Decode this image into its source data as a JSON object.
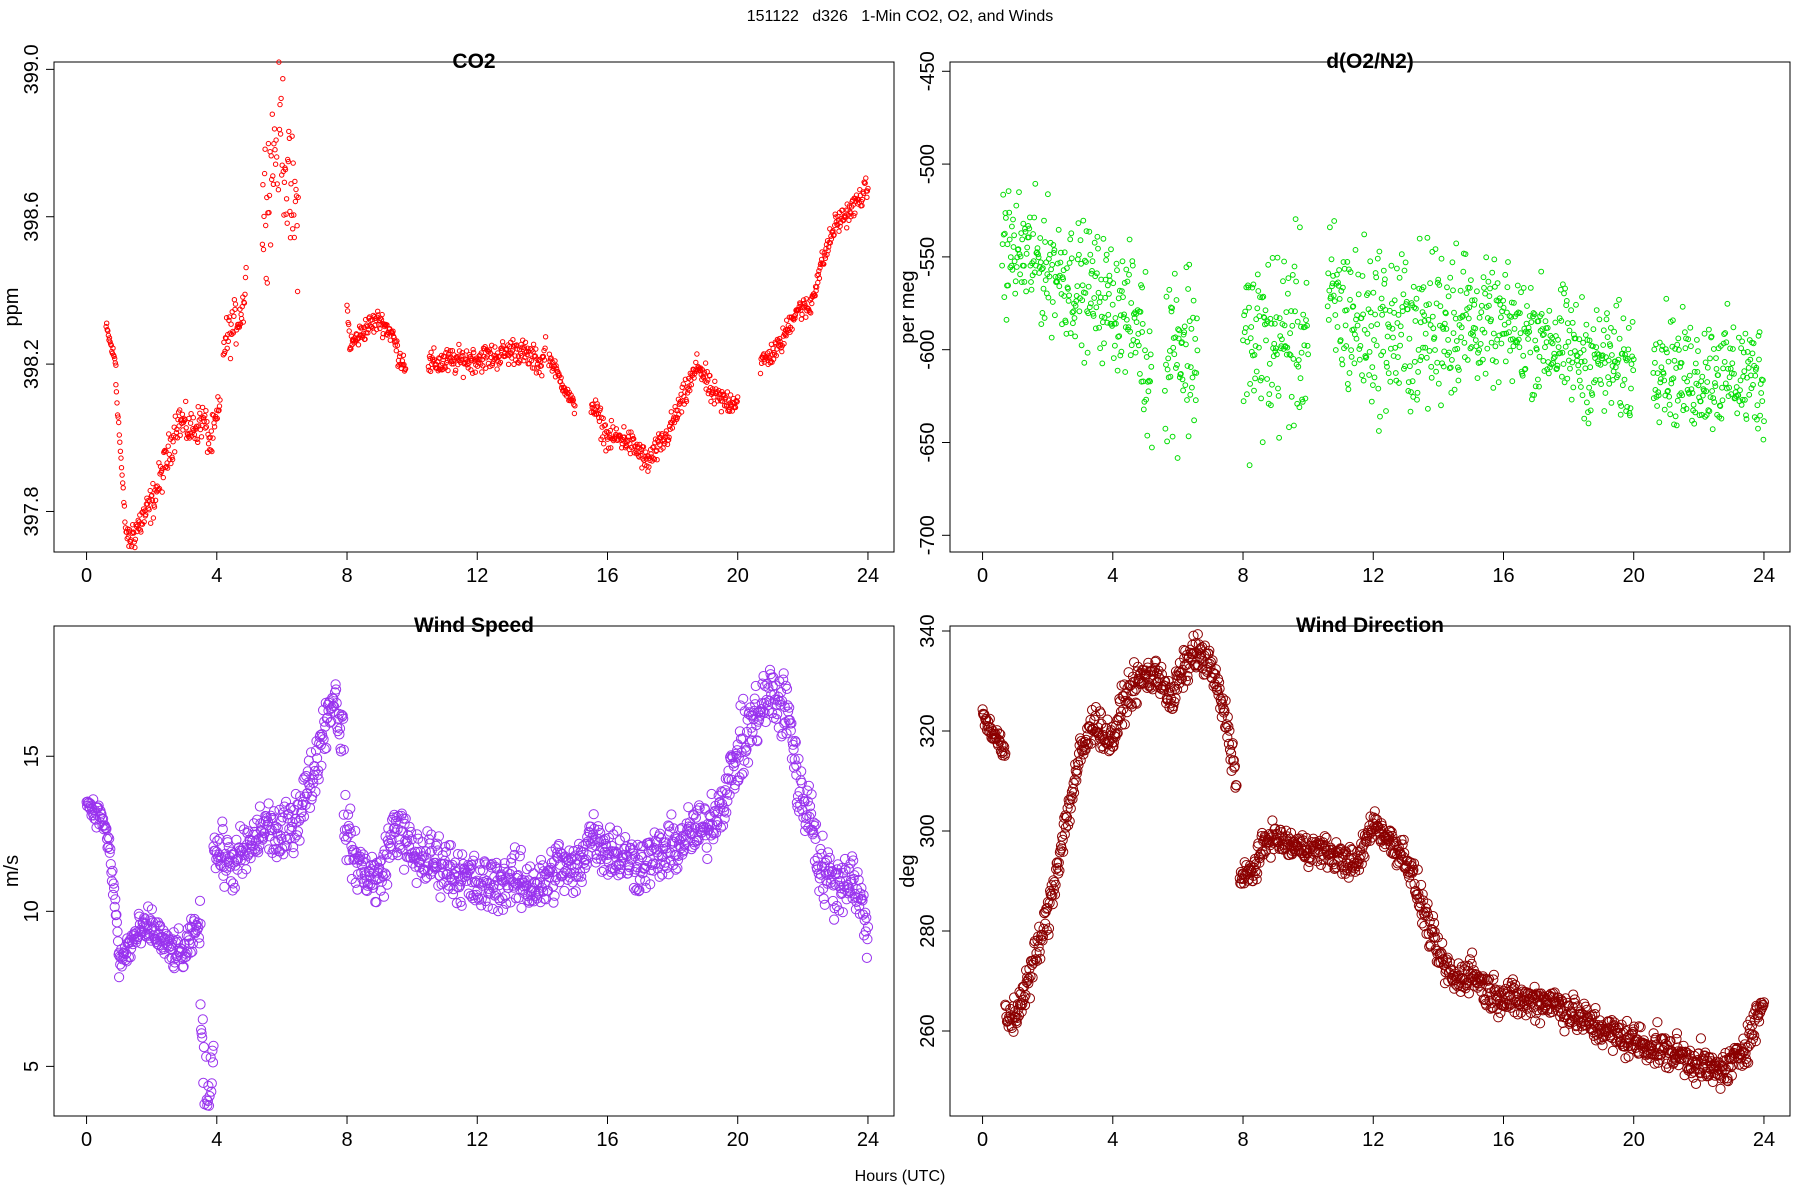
{
  "figure": {
    "title": "151122   d326   1-Min CO2, O2, and Winds",
    "xlabel": "Hours (UTC)"
  },
  "chart_data": [
    {
      "type": "scatter",
      "title": "CO2",
      "xlabel": "",
      "ylabel": "ppm",
      "xlim": [
        -1,
        24.8
      ],
      "ylim": [
        397.69,
        399.02
      ],
      "xticks": [
        0,
        4,
        8,
        12,
        16,
        20,
        24
      ],
      "yticks": [
        397.8,
        398.2,
        398.6,
        399.0
      ],
      "ytick_labels": [
        "397.8",
        "398.2",
        "398.6",
        "399.0"
      ],
      "color": "#ff0000",
      "marker_size": 2.2,
      "max_pts": 230,
      "spread": 0.015,
      "segments": [
        {
          "x0": 0.6,
          "x1": 0.9,
          "noise": 0.01,
          "pts": [
            [
              0.6,
              398.3
            ],
            [
              0.9,
              398.2
            ]
          ]
        },
        {
          "x0": 0.9,
          "x1": 1.3,
          "noise": 0.01,
          "pts": [
            [
              0.9,
              398.15
            ],
            [
              1.2,
              397.75
            ],
            [
              1.3,
              397.72
            ]
          ]
        },
        {
          "x0": 1.3,
          "x1": 4.1,
          "noise": 0.025,
          "pts": [
            [
              1.3,
              397.72
            ],
            [
              2.0,
              397.82
            ],
            [
              2.5,
              397.95
            ],
            [
              2.8,
              398.05
            ],
            [
              3.2,
              398.02
            ],
            [
              3.6,
              398.05
            ],
            [
              3.8,
              397.98
            ],
            [
              4.0,
              398.05
            ],
            [
              4.1,
              398.08
            ]
          ]
        },
        {
          "x0": 4.2,
          "x1": 4.9,
          "noise": 0.03,
          "pts": [
            [
              4.2,
              398.25
            ],
            [
              4.5,
              398.3
            ],
            [
              4.8,
              398.35
            ],
            [
              4.9,
              398.45
            ]
          ]
        },
        {
          "x0": 5.4,
          "x1": 6.5,
          "noise": 0.09,
          "pts": [
            [
              5.4,
              398.6
            ],
            [
              5.8,
              398.8
            ],
            [
              6.0,
              398.85
            ],
            [
              6.2,
              398.65
            ],
            [
              6.5,
              398.6
            ]
          ]
        },
        {
          "x0": 8.0,
          "x1": 9.8,
          "noise": 0.015,
          "pts": [
            [
              8.0,
              398.35
            ],
            [
              8.1,
              398.25
            ],
            [
              8.6,
              398.3
            ],
            [
              9.0,
              398.32
            ],
            [
              9.4,
              398.28
            ],
            [
              9.6,
              398.22
            ],
            [
              9.8,
              398.2
            ]
          ]
        },
        {
          "x0": 10.5,
          "x1": 14.1,
          "noise": 0.018,
          "pts": [
            [
              10.5,
              398.2
            ],
            [
              11.5,
              398.21
            ],
            [
              12.5,
              398.22
            ],
            [
              13.2,
              398.24
            ],
            [
              14.0,
              398.2
            ],
            [
              14.1,
              398.25
            ]
          ]
        },
        {
          "x0": 14.2,
          "x1": 15.0,
          "noise": 0.01,
          "pts": [
            [
              14.2,
              398.22
            ],
            [
              14.6,
              398.15
            ],
            [
              15.0,
              398.08
            ]
          ]
        },
        {
          "x0": 15.5,
          "x1": 20.0,
          "noise": 0.018,
          "pts": [
            [
              15.5,
              398.1
            ],
            [
              16.0,
              398.0
            ],
            [
              16.5,
              398.0
            ],
            [
              17.0,
              397.96
            ],
            [
              17.2,
              397.93
            ],
            [
              17.8,
              398.0
            ],
            [
              18.3,
              398.1
            ],
            [
              18.8,
              398.2
            ],
            [
              19.2,
              398.12
            ],
            [
              19.5,
              398.1
            ],
            [
              20.0,
              398.1
            ]
          ]
        },
        {
          "x0": 20.7,
          "x1": 24.0,
          "noise": 0.015,
          "pts": [
            [
              20.7,
              398.2
            ],
            [
              21.3,
              398.25
            ],
            [
              21.8,
              398.35
            ],
            [
              22.2,
              398.35
            ],
            [
              22.5,
              398.45
            ],
            [
              23.0,
              398.58
            ],
            [
              23.5,
              398.62
            ],
            [
              24.0,
              398.68
            ]
          ]
        }
      ]
    },
    {
      "type": "scatter",
      "title": "d(O2/N2)",
      "xlabel": "",
      "ylabel": "per meg",
      "xlim": [
        -1,
        24.8
      ],
      "ylim": [
        -709,
        -445
      ],
      "xticks": [
        0,
        4,
        8,
        12,
        16,
        20,
        24
      ],
      "yticks": [
        -700,
        -650,
        -600,
        -550,
        -500,
        -450
      ],
      "ytick_labels": [
        "-700",
        "-650",
        "-600",
        "-550",
        "-500",
        "-450"
      ],
      "color": "#00dd00",
      "marker_size": 2.4,
      "max_pts": 210,
      "spread": 12,
      "segments": [
        {
          "x0": 0.6,
          "x1": 4.9,
          "noise": 16,
          "pts": [
            [
              0.6,
              -545
            ],
            [
              1.5,
              -550
            ],
            [
              2.5,
              -560
            ],
            [
              3.5,
              -570
            ],
            [
              4.5,
              -580
            ],
            [
              4.9,
              -590
            ]
          ]
        },
        {
          "x0": 4.9,
          "x1": 5.2,
          "noise": 22,
          "pts": [
            [
              4.9,
              -600
            ],
            [
              5.2,
              -610
            ]
          ]
        },
        {
          "x0": 5.6,
          "x1": 6.6,
          "noise": 25,
          "pts": [
            [
              5.6,
              -600
            ],
            [
              6.0,
              -595
            ],
            [
              6.6,
              -600
            ]
          ]
        },
        {
          "x0": 8.0,
          "x1": 10.0,
          "noise": 25,
          "pts": [
            [
              8.0,
              -600
            ],
            [
              9.0,
              -595
            ],
            [
              10.0,
              -590
            ]
          ]
        },
        {
          "x0": 10.6,
          "x1": 15.0,
          "noise": 22,
          "pts": [
            [
              10.6,
              -575
            ],
            [
              11.5,
              -585
            ],
            [
              12.5,
              -590
            ],
            [
              13.5,
              -590
            ],
            [
              14.5,
              -580
            ],
            [
              15.0,
              -585
            ]
          ]
        },
        {
          "x0": 15.0,
          "x1": 20.0,
          "noise": 15,
          "pts": [
            [
              15.0,
              -585
            ],
            [
              16.5,
              -590
            ],
            [
              17.5,
              -595
            ],
            [
              18.5,
              -605
            ],
            [
              20.0,
              -610
            ]
          ]
        },
        {
          "x0": 20.6,
          "x1": 24.0,
          "noise": 15,
          "pts": [
            [
              20.6,
              -600
            ],
            [
              21.5,
              -615
            ],
            [
              22.5,
              -612
            ],
            [
              23.5,
              -615
            ],
            [
              24.0,
              -615
            ]
          ]
        }
      ]
    },
    {
      "type": "scatter",
      "title": "Wind Speed",
      "xlabel": "",
      "ylabel": "m/s",
      "xlim": [
        -1,
        24.8
      ],
      "ylim": [
        3.4,
        19.2
      ],
      "xticks": [
        0,
        4,
        8,
        12,
        16,
        20,
        24
      ],
      "yticks": [
        5,
        10,
        15
      ],
      "ytick_labels": [
        "5",
        "10",
        "15"
      ],
      "color": "#9933ee",
      "marker_size": 4.6,
      "max_pts": 190,
      "spread": 0.25,
      "segments": [
        {
          "x0": 0.0,
          "x1": 1.0,
          "noise": 0.2,
          "pts": [
            [
              0.0,
              13.5
            ],
            [
              0.5,
              13.0
            ],
            [
              0.7,
              12.0
            ],
            [
              0.9,
              10.0
            ],
            [
              1.0,
              8.5
            ]
          ]
        },
        {
          "x0": 1.0,
          "x1": 3.5,
          "noise": 0.3,
          "pts": [
            [
              1.0,
              8.3
            ],
            [
              1.5,
              9.2
            ],
            [
              2.0,
              9.5
            ],
            [
              2.5,
              8.8
            ],
            [
              3.0,
              8.6
            ],
            [
              3.5,
              9.7
            ]
          ]
        },
        {
          "x0": 3.5,
          "x1": 3.9,
          "noise": 0.6,
          "pts": [
            [
              3.5,
              7.0
            ],
            [
              3.6,
              4.5
            ],
            [
              3.8,
              4.0
            ],
            [
              3.9,
              6.5
            ]
          ]
        },
        {
          "x0": 3.9,
          "x1": 7.9,
          "noise": 0.45,
          "pts": [
            [
              3.9,
              12.0
            ],
            [
              4.5,
              11.5
            ],
            [
              5.0,
              12.0
            ],
            [
              5.5,
              12.8
            ],
            [
              6.0,
              12.3
            ],
            [
              6.5,
              13.2
            ],
            [
              7.0,
              14.5
            ],
            [
              7.3,
              16.0
            ],
            [
              7.6,
              17.0
            ],
            [
              7.9,
              15.5
            ]
          ]
        },
        {
          "x0": 7.9,
          "x1": 20.0,
          "noise": 0.45,
          "pts": [
            [
              7.9,
              13.0
            ],
            [
              8.2,
              11.8
            ],
            [
              8.5,
              11.3
            ],
            [
              9.0,
              11.0
            ],
            [
              9.5,
              12.8
            ],
            [
              10.0,
              11.8
            ],
            [
              11.0,
              11.5
            ],
            [
              12.0,
              10.8
            ],
            [
              13.0,
              11.0
            ],
            [
              14.0,
              10.8
            ],
            [
              14.5,
              11.5
            ],
            [
              15.0,
              11.2
            ],
            [
              15.5,
              12.5
            ],
            [
              16.0,
              12.0
            ],
            [
              17.0,
              11.5
            ],
            [
              18.0,
              12.0
            ],
            [
              18.5,
              12.5
            ],
            [
              19.0,
              12.6
            ],
            [
              19.5,
              13.5
            ],
            [
              20.0,
              15.0
            ]
          ]
        },
        {
          "x0": 20.0,
          "x1": 21.8,
          "noise": 0.55,
          "pts": [
            [
              20.0,
              15.0
            ],
            [
              20.5,
              16.2
            ],
            [
              21.0,
              17.0
            ],
            [
              21.5,
              16.5
            ],
            [
              21.8,
              15.0
            ]
          ]
        },
        {
          "x0": 21.8,
          "x1": 24.0,
          "noise": 0.5,
          "pts": [
            [
              21.8,
              14.0
            ],
            [
              22.3,
              13.0
            ],
            [
              22.5,
              11.5
            ],
            [
              23.0,
              10.8
            ],
            [
              23.5,
              11.2
            ],
            [
              24.0,
              9.5
            ]
          ]
        }
      ]
    },
    {
      "type": "scatter",
      "title": "Wind Direction",
      "xlabel": "",
      "ylabel": "deg",
      "xlim": [
        -1,
        24.8
      ],
      "ylim": [
        243,
        341
      ],
      "xticks": [
        0,
        4,
        8,
        12,
        16,
        20,
        24
      ],
      "yticks": [
        260,
        280,
        300,
        320,
        340
      ],
      "ytick_labels": [
        "260",
        "280",
        "300",
        "320",
        "340"
      ],
      "color": "#8b0000",
      "marker_size": 4.6,
      "max_pts": 200,
      "spread": 1,
      "segments": [
        {
          "x0": 0.0,
          "x1": 0.7,
          "noise": 1,
          "pts": [
            [
              0.0,
              323
            ],
            [
              0.5,
              318
            ],
            [
              0.7,
              315
            ]
          ]
        },
        {
          "x0": 0.7,
          "x1": 3.6,
          "noise": 2,
          "pts": [
            [
              0.7,
              262
            ],
            [
              1.0,
              263
            ],
            [
              1.5,
              272
            ],
            [
              2.0,
              283
            ],
            [
              2.5,
              300
            ],
            [
              3.0,
              315
            ],
            [
              3.5,
              323
            ],
            [
              3.6,
              320
            ]
          ]
        },
        {
          "x0": 3.6,
          "x1": 7.8,
          "noise": 1.8,
          "pts": [
            [
              3.6,
              320
            ],
            [
              4.0,
              318
            ],
            [
              4.3,
              325
            ],
            [
              4.5,
              328
            ],
            [
              5.0,
              331
            ],
            [
              5.5,
              331
            ],
            [
              5.8,
              325
            ],
            [
              6.0,
              330
            ],
            [
              6.5,
              336
            ],
            [
              7.0,
              333
            ],
            [
              7.5,
              322
            ],
            [
              7.8,
              310
            ]
          ]
        },
        {
          "x0": 7.9,
          "x1": 12.5,
          "noise": 1.5,
          "pts": [
            [
              7.9,
              290
            ],
            [
              8.3,
              292
            ],
            [
              8.8,
              299
            ],
            [
              9.5,
              297
            ],
            [
              10.5,
              296
            ],
            [
              11.5,
              293
            ],
            [
              12.0,
              302
            ],
            [
              12.5,
              298
            ]
          ]
        },
        {
          "x0": 12.5,
          "x1": 24.0,
          "noise": 1.8,
          "pts": [
            [
              12.5,
              298
            ],
            [
              13.0,
              295
            ],
            [
              13.5,
              285
            ],
            [
              14.0,
              275
            ],
            [
              14.5,
              270
            ],
            [
              15.0,
              272
            ],
            [
              15.5,
              268
            ],
            [
              16.5,
              266
            ],
            [
              17.5,
              266
            ],
            [
              18.5,
              262
            ],
            [
              19.5,
              259
            ],
            [
              20.5,
              257
            ],
            [
              21.5,
              255
            ],
            [
              22.5,
              252
            ],
            [
              23.0,
              253
            ],
            [
              23.5,
              258
            ],
            [
              24.0,
              266
            ]
          ]
        }
      ]
    }
  ]
}
